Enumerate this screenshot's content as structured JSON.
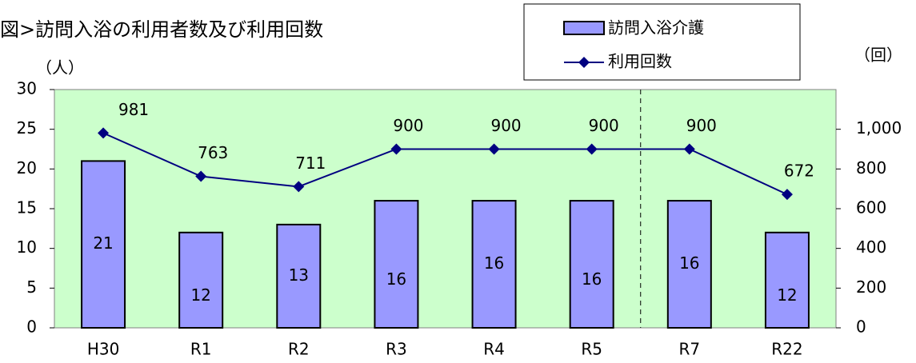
{
  "chart_data": {
    "type": "bar",
    "title": "図>訪問入浴の利用者数及び利用回数",
    "ylabel": "（人）",
    "y2label": "（回）",
    "categories": [
      "H30",
      "R1",
      "R2",
      "R3",
      "R4",
      "R5",
      "R7",
      "R22"
    ],
    "series": [
      {
        "name": "訪問入浴介護",
        "type": "bar",
        "color": "#9999ff",
        "values": [
          21,
          12,
          13,
          16,
          16,
          16,
          16,
          12
        ]
      },
      {
        "name": "利用回数",
        "type": "line",
        "axis": "y2",
        "color": "#000080",
        "values": [
          981,
          763,
          711,
          900,
          900,
          900,
          900,
          672
        ]
      }
    ],
    "ylim": [
      0,
      30
    ],
    "yticks": [
      0,
      5,
      10,
      15,
      20,
      25,
      30
    ],
    "y2lim": [
      0,
      1200
    ],
    "y2ticks": [
      0,
      200,
      400,
      600,
      800,
      {
        "value": 1000,
        "label": "1,000"
      }
    ],
    "background": "#ccffcc"
  }
}
